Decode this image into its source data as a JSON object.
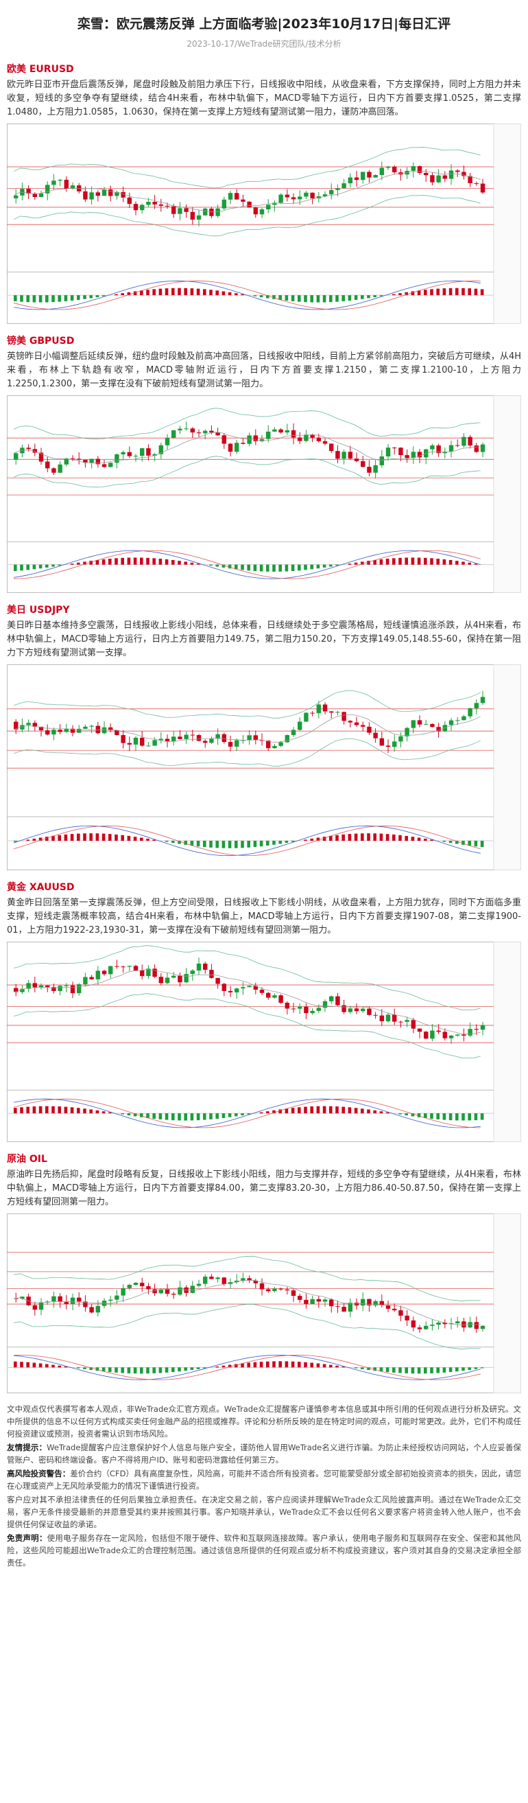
{
  "header": {
    "title": "栾雪：欧元震荡反弹 上方面临考验|2023年10月17日|每日汇评",
    "meta": "2023-10-17/WeTrade研究团队/技术分析"
  },
  "sections": [
    {
      "heading": "欧美 EURUSD",
      "body": "欧元昨日亚市开盘后震荡反弹，尾盘时段触及前阻力承压下行，日线报收中阳线，从收盘来看，下方支撑保持，同时上方阻力并未收复，短线的多空争夺有望继续，结合4H来看，布林中轨偏下，MACD零轴下方运行，日内下方首要支撑1.0525，第二支撑1.0480，上方阻力1.0585，1.0630，保持在第一支撑上方短线有望测试第一阻力，谨防冲高回落。"
    },
    {
      "heading": "镑美 GBPUSD",
      "body": "英镑昨日小幅调整后延续反弹，纽约盘时段触及前高冲高回落，日线报收中阳线，目前上方紧邻前高阻力，突破后方可继续，从4H来看，布林上下轨趋有收窄，MACD零轴附近运行，日内下方首要支撑1.2150，第二支撑1.2100-10，上方阻力1.2250,1.2300，第一支撑在没有下破前短线有望测试第一阻力。"
    },
    {
      "heading": "美日 USDJPY",
      "body": "美日昨日基本维持多空震荡，日线报收上影线小阳线，总体来看，日线继续处于多空震荡格局，短线谨慎追涨杀跌，从4H来看，布林中轨偏上，MACD零轴上方运行，日内上方首要阻力149.75，第二阻力150.20，下方支撑149.05,148.55-60，保持在第一阻力下方短线有望测试第一支撑。"
    },
    {
      "heading": "黄金 XAUUSD",
      "body": "黄金昨日回落至第一支撑震荡反弹，但上方空间受限，日线报收上下影线小阴线，从收盘来看，上方阻力犹存，同时下方面临多重支撑，短线走震荡概率较高，结合4H来看，布林中轨偏上，MACD零轴上方运行，日内下方首要支撑1907-08，第二支撑1900-01，上方阻力1922-23,1930-31，第一支撑在没有下破前短线有望回测第一阻力。"
    },
    {
      "heading": "原油 OIL",
      "body": "原油昨日先扬后抑，尾盘时段略有反复，日线报收上下影线小阳线，阻力与支撑并存，短线的多空争夺有望继续，从4H来看，布林中轨偏上，MACD零轴上方运行，日内下方首要支撑84.00，第二支撑83.20-30，上方阻力86.40-50.87.50，保持在第一支撑上方短线有望回测第一阻力。"
    }
  ],
  "disclaimer": [
    {
      "text": "文中观点仅代表撰写者本人观点，非WeTrade众汇官方观点。WeTrade众汇提醒客户谨慎参考本信息或其中所引用的任何观点进行分析及研究。文中所提供的信息不以任何方式构成买卖任何金融产品的招揽或推荐。评论和分析所反映的是在特定时间的观点，可能时常更改。此外，它们不构成任何投资建议或预测，投资者需认识到市场风险。"
    },
    {
      "label": "友情提示：",
      "text": "WeTrade提醒客户应注意保护好个人信息与账户安全，谨防他人冒用WeTrade名义进行诈骗。为防止未经授权访问网站，个人应妥善保管账户、密码和终端设备。客户不得将用户ID、账号和密码泄露给任何第三方。"
    },
    {
      "label": "高风险投资警告：",
      "text": "差价合约（CFD）具有高度复杂性，风险高，可能并不适合所有投资者。您可能蒙受部分或全部初始投资资本的损失，因此，请您在心理或资产上无风险承受能力的情况下谨慎进行投资。"
    },
    {
      "text": "客户应对其不承担法律责任的任何后果独立承担责任。在决定交易之前，客户应阅读并理解WeTrade众汇风险披露声明。通过在WeTrade众汇交易，客户无条件接受最新的并愿意受其约束并按照其行事。客户知晓并承认，WeTrade众汇不会以任何名义要求客户将资金转入他人账户，也不会提供任何保证收益的承诺。"
    },
    {
      "label": "免责声明：",
      "text": "使用电子服务存在一定风险，包括但不限于硬件、软件和互联网连接故障。客户承认，使用电子服务和互联网存在安全、保密和其他风险，这些风险可能超出WeTrade众汇的合理控制范围。通过该信息所提供的任何观点或分析不构成投资建议，客户须对其自身的交易决定承担全部责任。"
    }
  ]
}
